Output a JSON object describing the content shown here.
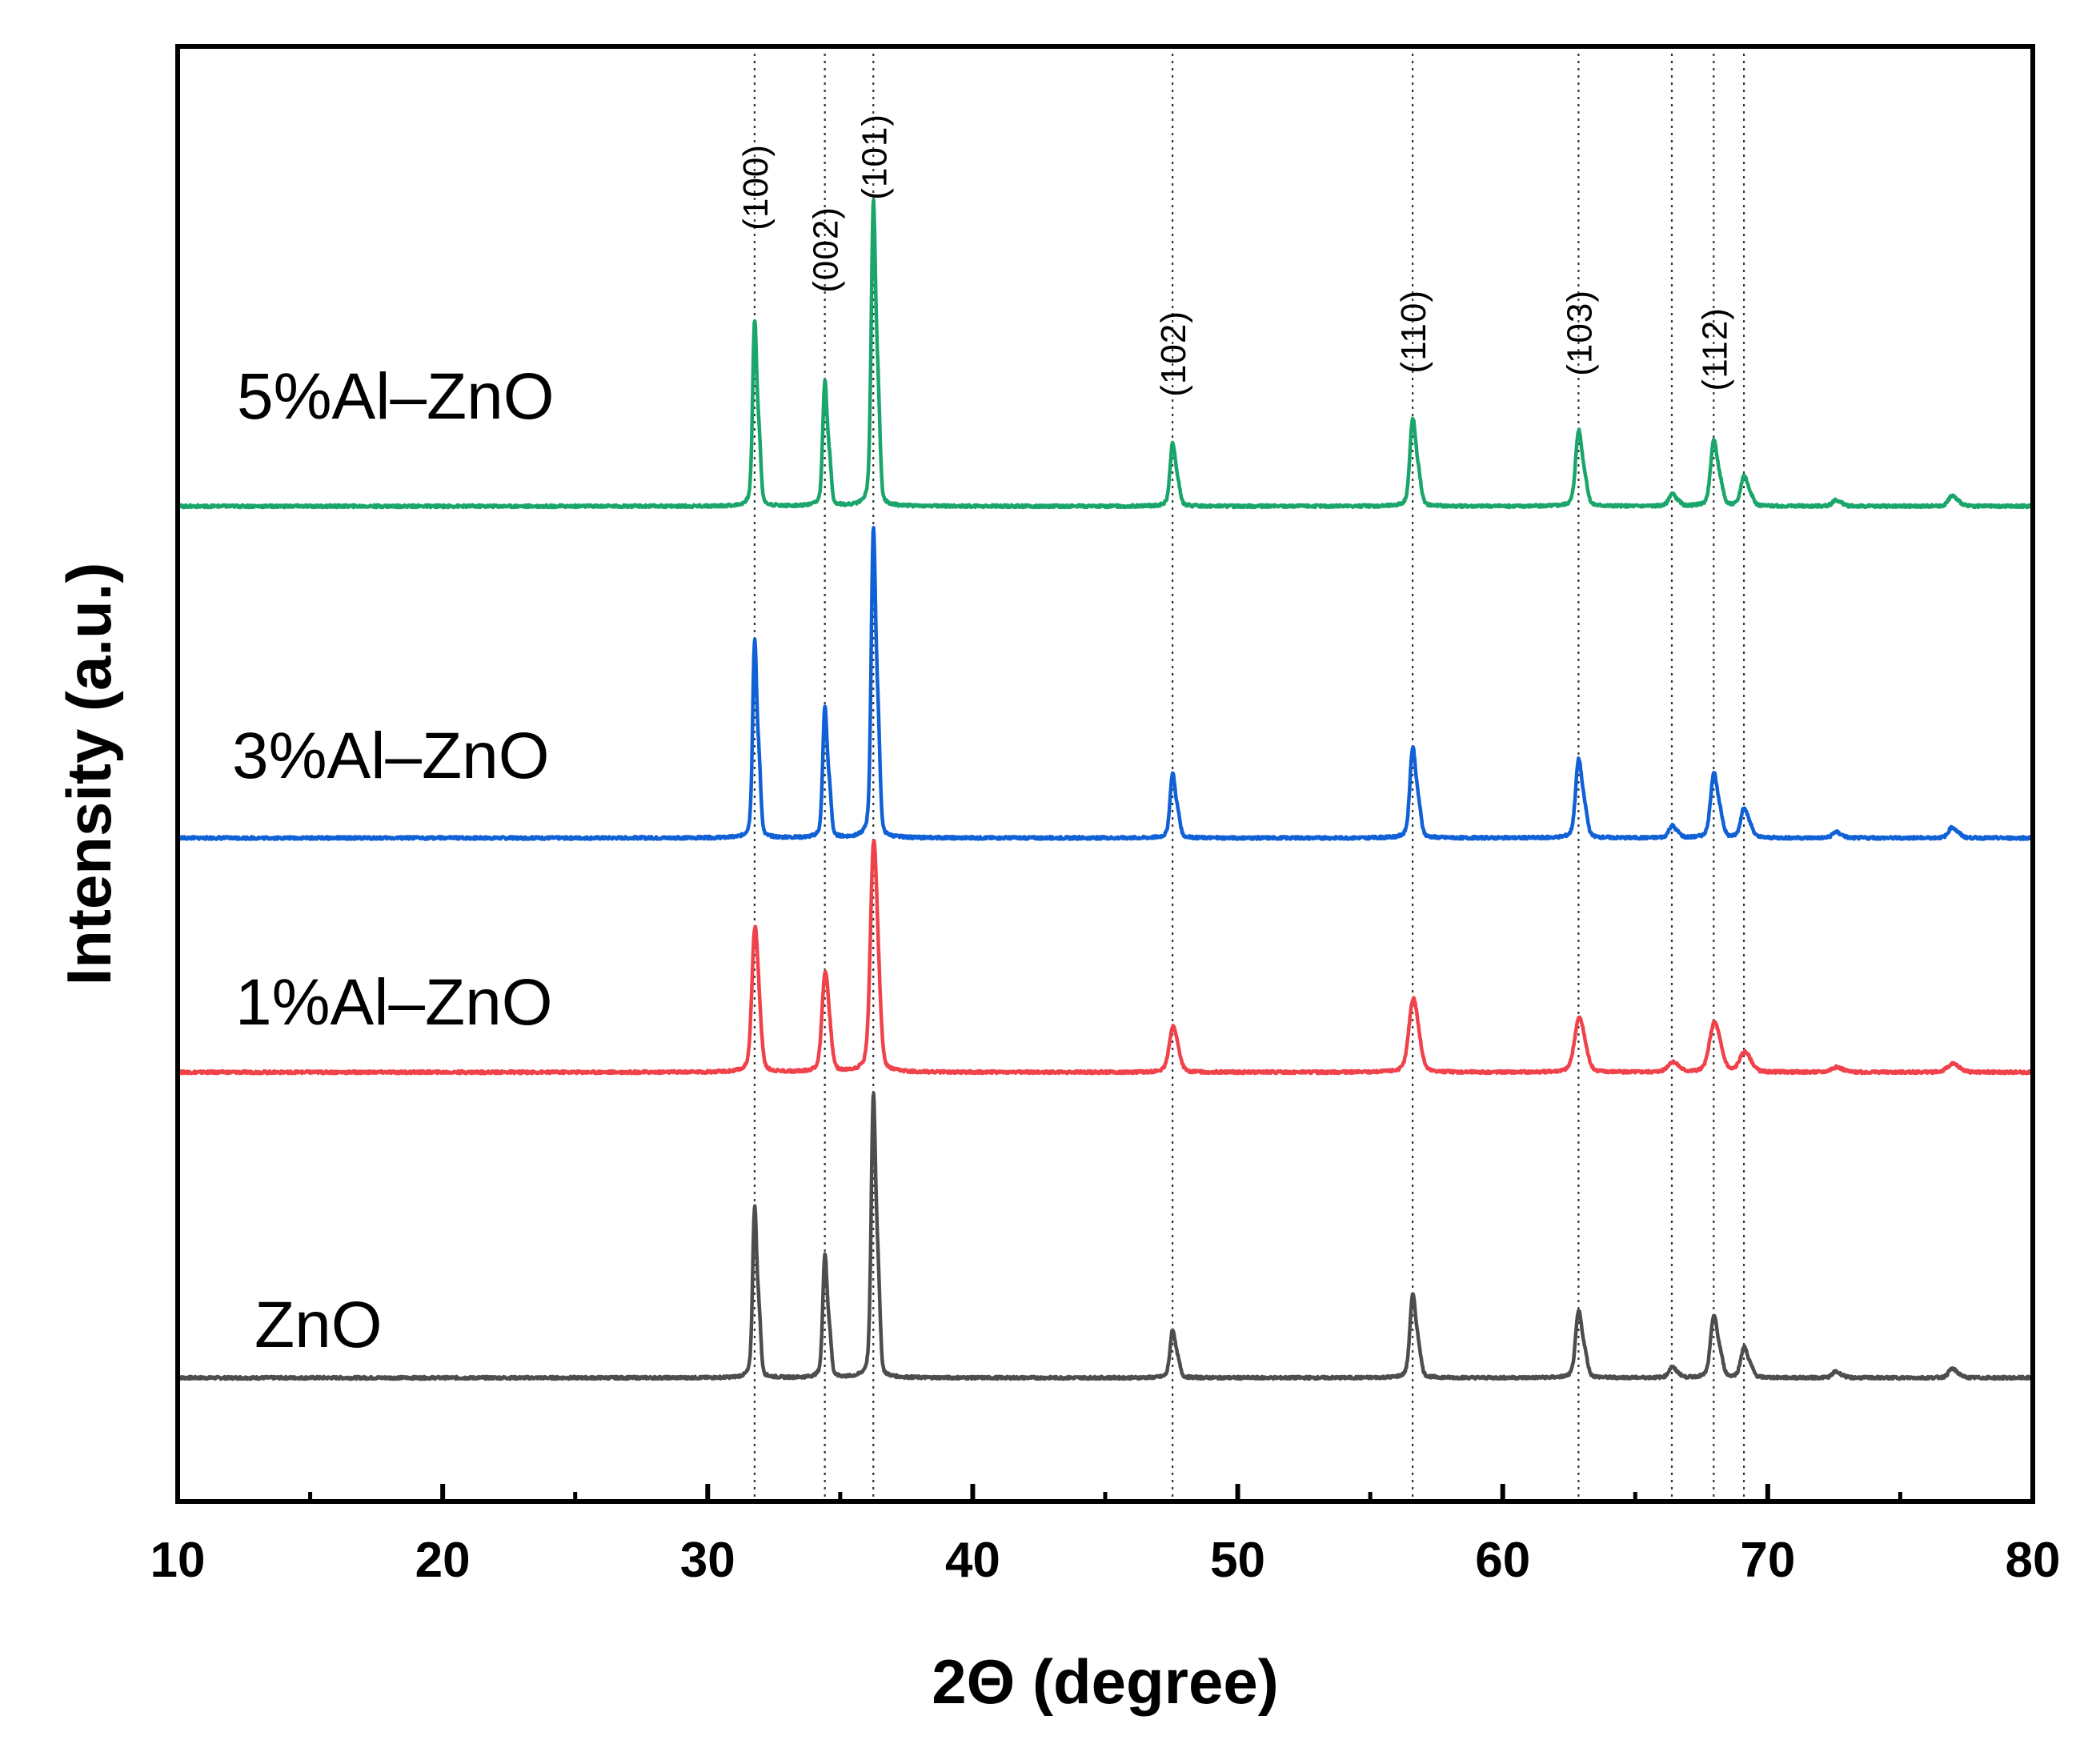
{
  "chart_data": {
    "type": "line",
    "title": "",
    "xlabel": "2Θ (degree)",
    "ylabel": "Intensity (a.u.)",
    "xlim": [
      10,
      80
    ],
    "ylim": [
      0,
      100
    ],
    "xticks": [
      10,
      20,
      30,
      40,
      50,
      60,
      70,
      80
    ],
    "xtick_labels": [
      "10",
      "20",
      "30",
      "40",
      "50",
      "60",
      "70",
      "80"
    ],
    "yticks_shown": false,
    "grid": false,
    "legend": "none",
    "peak_markers": [
      {
        "x": 31.77,
        "label": "(100)"
      },
      {
        "x": 34.42,
        "label": "(002)"
      },
      {
        "x": 36.25,
        "label": "(101)"
      },
      {
        "x": 47.54,
        "label": "(102)"
      },
      {
        "x": 56.6,
        "label": "(110)"
      },
      {
        "x": 62.86,
        "label": "(103)"
      },
      {
        "x": 66.38,
        "label": ""
      },
      {
        "x": 67.96,
        "label": "(112)"
      },
      {
        "x": 69.1,
        "label": ""
      }
    ],
    "series": [
      {
        "name": "ZnO",
        "color": "#4d4d4d",
        "baseline": 8.5,
        "width_scale": 1.0,
        "peaks": [
          {
            "x": 31.77,
            "h": 11.5
          },
          {
            "x": 34.42,
            "h": 8.3
          },
          {
            "x": 36.25,
            "h": 19.0
          },
          {
            "x": 47.54,
            "h": 3.2
          },
          {
            "x": 56.6,
            "h": 5.5
          },
          {
            "x": 62.86,
            "h": 4.4
          },
          {
            "x": 66.38,
            "h": 0.7
          },
          {
            "x": 67.96,
            "h": 4.1
          },
          {
            "x": 69.1,
            "h": 2.0
          },
          {
            "x": 72.56,
            "h": 0.4
          },
          {
            "x": 76.95,
            "h": 0.6
          }
        ]
      },
      {
        "name": "1%Al–ZnO",
        "color": "#f0424a",
        "baseline": 29.5,
        "width_scale": 1.45,
        "peaks": [
          {
            "x": 31.77,
            "h": 9.0
          },
          {
            "x": 34.42,
            "h": 6.2
          },
          {
            "x": 36.25,
            "h": 14.3
          },
          {
            "x": 47.54,
            "h": 2.8
          },
          {
            "x": 56.6,
            "h": 4.5
          },
          {
            "x": 62.86,
            "h": 3.3
          },
          {
            "x": 66.38,
            "h": 0.6
          },
          {
            "x": 67.96,
            "h": 3.0
          },
          {
            "x": 69.1,
            "h": 1.2
          },
          {
            "x": 72.56,
            "h": 0.3
          },
          {
            "x": 76.95,
            "h": 0.5
          }
        ]
      },
      {
        "name": "3%Al–ZnO",
        "color": "#1060d6",
        "baseline": 45.6,
        "width_scale": 1.0,
        "peaks": [
          {
            "x": 31.77,
            "h": 13.3
          },
          {
            "x": 34.42,
            "h": 8.8
          },
          {
            "x": 36.25,
            "h": 20.8
          },
          {
            "x": 47.54,
            "h": 4.3
          },
          {
            "x": 56.6,
            "h": 6.0
          },
          {
            "x": 62.86,
            "h": 5.2
          },
          {
            "x": 66.38,
            "h": 0.8
          },
          {
            "x": 67.96,
            "h": 4.3
          },
          {
            "x": 69.1,
            "h": 2.0
          },
          {
            "x": 72.56,
            "h": 0.4
          },
          {
            "x": 76.95,
            "h": 0.7
          }
        ]
      },
      {
        "name": "5%Al–ZnO",
        "color": "#1aa66a",
        "baseline": 68.4,
        "width_scale": 1.0,
        "peaks": [
          {
            "x": 31.77,
            "h": 12.5
          },
          {
            "x": 34.42,
            "h": 8.4
          },
          {
            "x": 36.25,
            "h": 20.4
          },
          {
            "x": 47.54,
            "h": 4.2
          },
          {
            "x": 56.6,
            "h": 5.8
          },
          {
            "x": 62.86,
            "h": 5.0
          },
          {
            "x": 66.38,
            "h": 0.8
          },
          {
            "x": 67.96,
            "h": 4.3
          },
          {
            "x": 69.1,
            "h": 2.0
          },
          {
            "x": 72.56,
            "h": 0.4
          },
          {
            "x": 76.95,
            "h": 0.7
          }
        ]
      }
    ]
  }
}
